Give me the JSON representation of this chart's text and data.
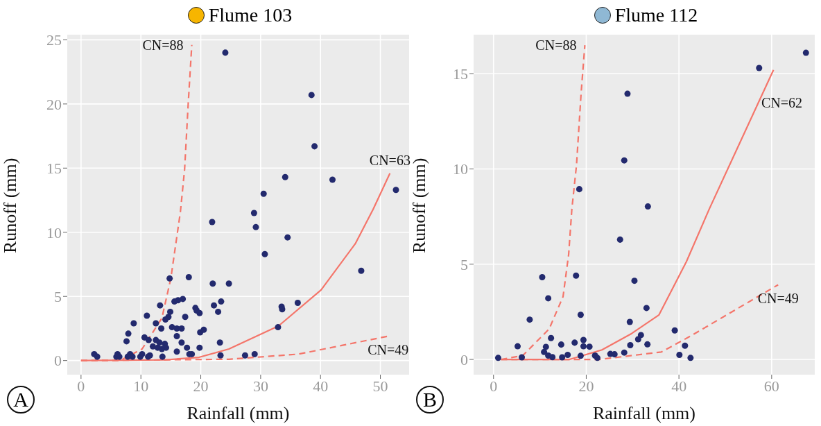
{
  "chart_data": [
    {
      "type": "scatter",
      "title": "Flume 103",
      "xlabel": "Rainfall (mm)",
      "ylabel": "Runoff (mm)",
      "xlim": [
        -2.3,
        54.8
      ],
      "ylim": [
        -1.1,
        25.4
      ],
      "xticks": [
        0,
        10,
        20,
        30,
        40,
        50
      ],
      "yticks": [
        0,
        5,
        10,
        15,
        20,
        25
      ],
      "grid": true,
      "marker": "circle",
      "series": [
        {
          "type": "scatter",
          "color": "#232a6e",
          "x": [
            24.1,
            38.5,
            39.0,
            34.1,
            42.0,
            52.6,
            30.5,
            28.9,
            29.2,
            34.5,
            30.7,
            46.8,
            24.7,
            33.5,
            33.6,
            36.2,
            32.9,
            27.4,
            29.0,
            21.9,
            14.8,
            18.0,
            22.0,
            15.6,
            16.2,
            17.0,
            13.2,
            19.1,
            19.3,
            19.8,
            22.2,
            23.4,
            22.9,
            14.9,
            14.6,
            14.1,
            11.0,
            17.4,
            12.5,
            8.8,
            13.4,
            15.2,
            16.0,
            16.8,
            16.0,
            19.9,
            20.5,
            7.9,
            10.6,
            11.3,
            7.6,
            12.5,
            13.1,
            12.0,
            12.8,
            14.0,
            14.2,
            13.5,
            16.8,
            17.7,
            19.8,
            23.2,
            16.0,
            18.1,
            18.5,
            23.3,
            2.2,
            2.7,
            6.1,
            6.4,
            5.9,
            8.2,
            8.6,
            7.8,
            10.2,
            9.9,
            11.5,
            11.2,
            13.6
          ],
          "values": [
            24.0,
            20.7,
            16.7,
            14.3,
            14.1,
            13.3,
            13.0,
            11.5,
            10.4,
            9.6,
            8.3,
            7.0,
            6.0,
            4.2,
            4.0,
            4.5,
            2.6,
            0.4,
            0.5,
            10.8,
            6.4,
            6.5,
            6.0,
            4.6,
            4.7,
            4.8,
            4.3,
            4.1,
            3.9,
            3.7,
            4.3,
            4.6,
            3.8,
            3.8,
            3.4,
            3.2,
            3.5,
            3.4,
            2.9,
            2.9,
            2.5,
            2.6,
            2.5,
            2.5,
            1.9,
            2.2,
            2.4,
            2.1,
            1.8,
            1.6,
            1.5,
            1.6,
            1.4,
            1.1,
            1.0,
            1.3,
            1.0,
            0.9,
            1.4,
            1.0,
            1.0,
            1.4,
            0.7,
            0.5,
            0.5,
            0.4,
            0.5,
            0.3,
            0.5,
            0.3,
            0.3,
            0.5,
            0.3,
            0.3,
            0.5,
            0.3,
            0.4,
            0.3,
            0.3
          ]
        },
        {
          "type": "line",
          "color": "#f4756a",
          "line_style": "dashed",
          "marker": "none",
          "x": [
            0,
            6.5,
            10.2,
            13.5,
            15.0,
            16.6,
            17.3,
            17.9,
            18.5
          ],
          "values": [
            0,
            0,
            0.9,
            3.3,
            6.4,
            11.6,
            14.9,
            20.0,
            24.6
          ]
        },
        {
          "type": "line",
          "color": "#f4756a",
          "line_style": "solid",
          "marker": "none",
          "x": [
            0,
            13.9,
            19.7,
            24.7,
            33.0,
            40.1,
            45.8,
            48.8,
            51.6
          ],
          "values": [
            0,
            0.05,
            0.25,
            0.9,
            2.7,
            5.5,
            9.1,
            11.8,
            14.6
          ]
        },
        {
          "type": "line",
          "color": "#f4756a",
          "line_style": "dashed",
          "marker": "none",
          "x": [
            0,
            24.7,
            36.3,
            51.3
          ],
          "values": [
            0,
            0.1,
            0.5,
            1.9
          ]
        }
      ],
      "annotations": [
        "A",
        {
          "text": "CN=88",
          "x": 18.5,
          "y": 24.6
        },
        {
          "text": "CN=63",
          "x": 51.6,
          "y": 14.6
        },
        {
          "text": "CN=49",
          "x": 51.3,
          "y": 1.9
        }
      ]
    },
    {
      "type": "scatter",
      "title": "Flume 112",
      "xlabel": "Rainfall (mm)",
      "ylabel": "Runoff (mm)",
      "xlim": [
        -4.3,
        69.3
      ],
      "ylim": [
        -0.8,
        17.05
      ],
      "xticks": [
        0,
        20,
        40,
        60
      ],
      "yticks": [
        0,
        5,
        10,
        15
      ],
      "grid": true,
      "marker": "circle",
      "series": [
        {
          "type": "scatter",
          "color": "#232a6e",
          "x": [
            67.4,
            57.3,
            28.9,
            28.2,
            18.5,
            33.3,
            27.3,
            10.5,
            17.8,
            30.4,
            11.8,
            33.0,
            7.8,
            18.8,
            29.4,
            39.1,
            12.4,
            31.8,
            31.2,
            5.2,
            11.3,
            10.9,
            11.8,
            12.7,
            14.6,
            17.5,
            19.4,
            19.4,
            20.7,
            16.0,
            14.8,
            18.8,
            21.9,
            22.4,
            25.2,
            26.1,
            28.2,
            29.5,
            33.2,
            41.3,
            40.1,
            42.5,
            1.0,
            6.1
          ],
          "values": [
            16.1,
            15.3,
            13.95,
            10.45,
            8.94,
            8.03,
            6.29,
            4.32,
            4.4,
            4.13,
            3.21,
            2.7,
            2.09,
            2.34,
            1.97,
            1.52,
            1.12,
            1.28,
            1.06,
            0.69,
            0.66,
            0.39,
            0.2,
            0.12,
            0.78,
            0.88,
            1.02,
            0.69,
            0.67,
            0.24,
            0.11,
            0.19,
            0.2,
            0.08,
            0.29,
            0.27,
            0.36,
            0.75,
            0.79,
            0.72,
            0.24,
            0.08,
            0.08,
            0.11
          ]
        },
        {
          "type": "line",
          "color": "#f4756a",
          "line_style": "dashed",
          "marker": "none",
          "x": [
            1.6,
            6.3,
            12.0,
            15.0,
            16.2,
            16.9,
            17.9,
            18.9,
            19.7
          ],
          "values": [
            0,
            0.2,
            1.6,
            3.3,
            5.5,
            7.9,
            10.2,
            14.0,
            16.5
          ]
        },
        {
          "type": "line",
          "color": "#f4756a",
          "line_style": "solid",
          "marker": "none",
          "x": [
            1.6,
            16.4,
            23.4,
            29.8,
            35.7,
            41.6,
            46.6,
            60.4
          ],
          "values": [
            0,
            0,
            0.5,
            1.36,
            2.34,
            5.13,
            7.93,
            15.2
          ]
        },
        {
          "type": "line",
          "color": "#f4756a",
          "line_style": "dashed",
          "marker": "none",
          "x": [
            1.6,
            22.9,
            36.2,
            42.6,
            61.4
          ],
          "values": [
            0,
            0,
            0.39,
            1.24,
            3.92
          ]
        }
      ],
      "annotations": [
        "B",
        {
          "text": "CN=88",
          "x": 19.7,
          "y": 16.5
        },
        {
          "text": "CN=62",
          "x": 60.4,
          "y": 15.2
        },
        {
          "text": "CN=49",
          "x": 61.4,
          "y": 3.92
        }
      ]
    }
  ]
}
